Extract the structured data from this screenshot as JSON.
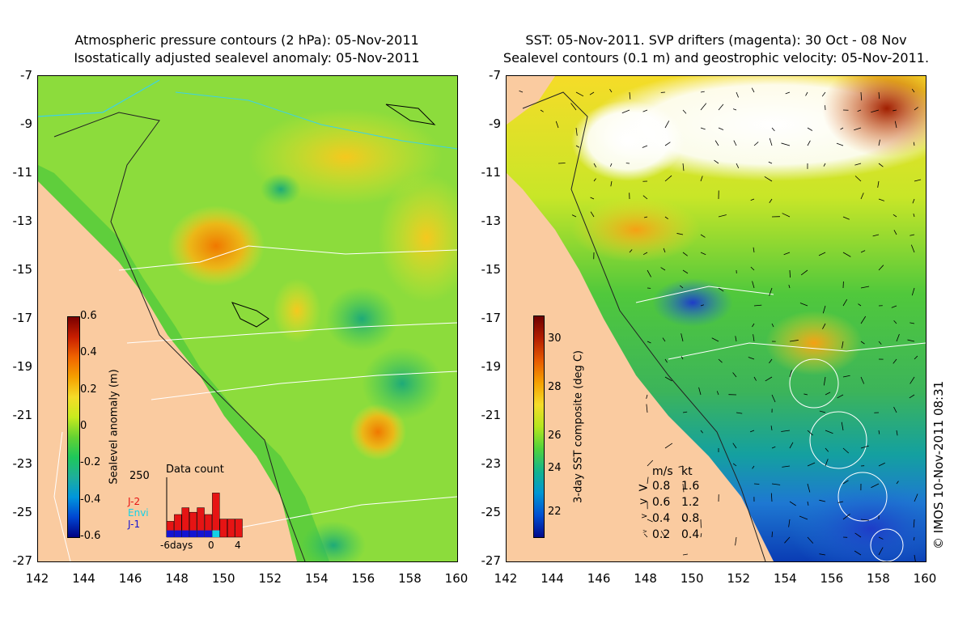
{
  "left_panel": {
    "title_line1": "Atmospheric pressure contours (2 hPa): 05-Nov-2011",
    "title_line2": "Isostatically adjusted sealevel anomaly: 05-Nov-2011",
    "colorbar": {
      "label": "Sealevel anomaly (m)",
      "ticks": [
        "0.6",
        "0.4",
        "0.2",
        "0",
        "-0.2",
        "-0.4",
        "-0.6"
      ],
      "colors": [
        "#7a0000",
        "#c81e00",
        "#f06400",
        "#f5a000",
        "#f5dc28",
        "#c8eb1e",
        "#64d232",
        "#1ec85a",
        "#1eaf9b",
        "#0096dc",
        "#0046d2",
        "#000082"
      ]
    },
    "inset": {
      "title": "Data count",
      "ymax_label": "250",
      "x_labels": [
        "-6days",
        "0",
        "4"
      ],
      "legend": [
        {
          "label": "J-2",
          "color": "#e61414"
        },
        {
          "label": "Envi",
          "color": "#14d2e6"
        },
        {
          "label": "J-1",
          "color": "#1414d2"
        }
      ],
      "bars_total": [
        0.28,
        0.4,
        0.52,
        0.44,
        0.52,
        0.4,
        0.78,
        0.32,
        0.32,
        0.32
      ],
      "bars_blue": [
        0.12,
        0.12,
        0.12,
        0.12,
        0.12,
        0.12,
        0.12,
        0,
        0,
        0
      ],
      "bars_cyan": [
        0,
        0,
        0,
        0,
        0,
        0,
        0.12,
        0,
        0,
        0
      ]
    }
  },
  "right_panel": {
    "title_line1": "SST: 05-Nov-2011. SVP drifters (magenta): 30 Oct - 08 Nov",
    "title_line2": "Sealevel contours (0.1 m) and geostrophic velocity: 05-Nov-2011.",
    "colorbar": {
      "label": "3-day SST composite (deg C)",
      "ticks": [
        "30",
        "28",
        "26",
        "24",
        "22"
      ],
      "colors": [
        "#6e0000",
        "#b41e00",
        "#e65a00",
        "#f5a000",
        "#f5dc28",
        "#b4e61e",
        "#50d23c",
        "#14b48c",
        "#0096d2",
        "#0050d2",
        "#000a8c"
      ]
    },
    "speed_legend": {
      "headers": [
        "m/s",
        "kt"
      ],
      "rows": [
        [
          "0.8",
          "1.6"
        ],
        [
          "0.6",
          "1.2"
        ],
        [
          "0.4",
          "0.8"
        ],
        [
          "0.2",
          "0.4"
        ]
      ]
    }
  },
  "map_axes": {
    "lat_ticks": [
      "-7",
      "-9",
      "-11",
      "-13",
      "-15",
      "-17",
      "-19",
      "-21",
      "-23",
      "-25",
      "-27"
    ],
    "lon_ticks": [
      "142",
      "144",
      "146",
      "148",
      "150",
      "152",
      "154",
      "156",
      "158",
      "160"
    ],
    "land_color": "#facba0"
  },
  "credit": "© IMOS 10-Nov-2011 08:31"
}
